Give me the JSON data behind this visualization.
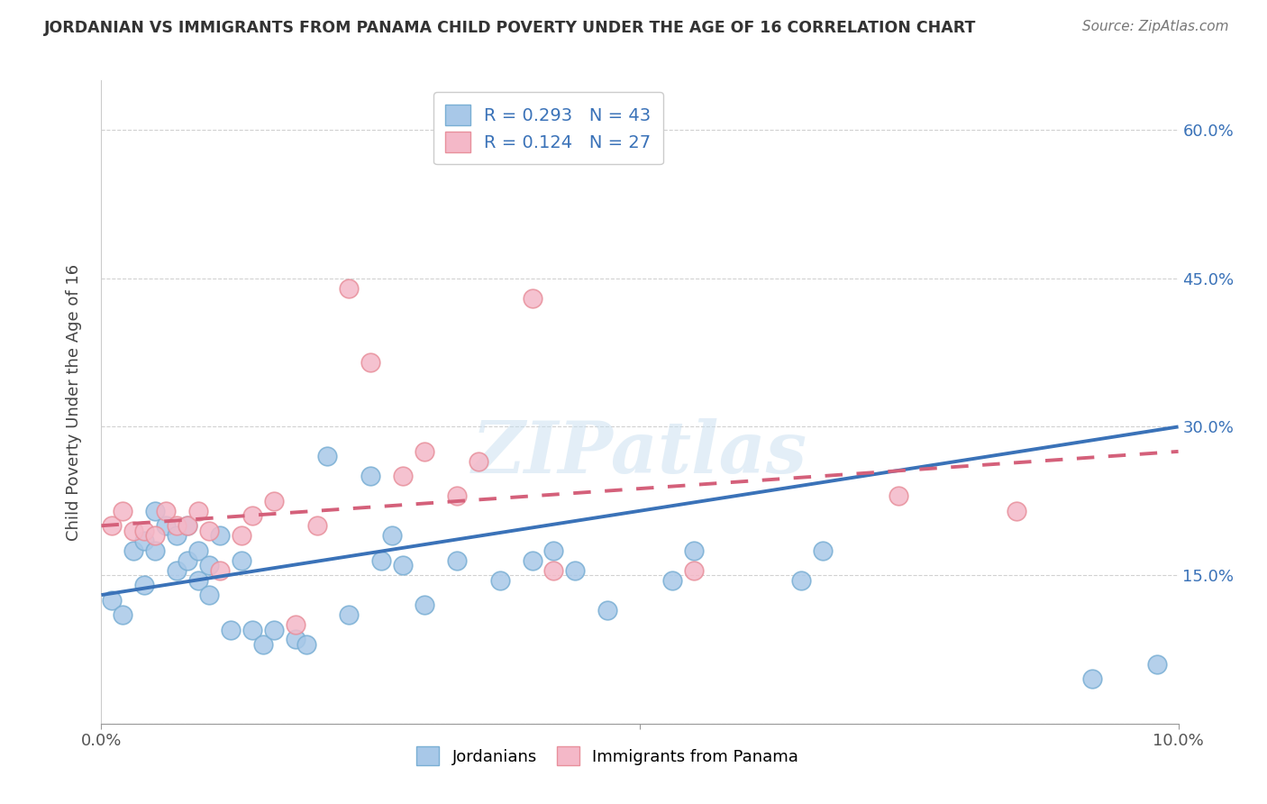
{
  "title": "JORDANIAN VS IMMIGRANTS FROM PANAMA CHILD POVERTY UNDER THE AGE OF 16 CORRELATION CHART",
  "source": "Source: ZipAtlas.com",
  "ylabel": "Child Poverty Under the Age of 16",
  "x_min": 0.0,
  "x_max": 0.1,
  "y_min": 0.0,
  "y_max": 0.65,
  "y_ticks": [
    0.0,
    0.15,
    0.3,
    0.45,
    0.6
  ],
  "y_tick_labels": [
    "",
    "15.0%",
    "30.0%",
    "45.0%",
    "60.0%"
  ],
  "blue_R": 0.293,
  "blue_N": 43,
  "pink_R": 0.124,
  "pink_N": 27,
  "blue_color": "#a8c8e8",
  "pink_color": "#f4b8c8",
  "blue_edge_color": "#7aafd4",
  "pink_edge_color": "#e8909c",
  "blue_line_color": "#3a72b8",
  "pink_line_color": "#d4607a",
  "legend_label_blue": "Jordanians",
  "legend_label_pink": "Immigrants from Panama",
  "blue_x": [
    0.001,
    0.002,
    0.003,
    0.004,
    0.004,
    0.005,
    0.005,
    0.006,
    0.007,
    0.007,
    0.008,
    0.008,
    0.009,
    0.009,
    0.01,
    0.01,
    0.011,
    0.012,
    0.013,
    0.014,
    0.015,
    0.016,
    0.018,
    0.019,
    0.021,
    0.023,
    0.025,
    0.026,
    0.027,
    0.028,
    0.03,
    0.033,
    0.037,
    0.04,
    0.042,
    0.044,
    0.047,
    0.053,
    0.055,
    0.065,
    0.067,
    0.092,
    0.098
  ],
  "blue_y": [
    0.125,
    0.11,
    0.175,
    0.14,
    0.185,
    0.175,
    0.215,
    0.2,
    0.19,
    0.155,
    0.165,
    0.2,
    0.145,
    0.175,
    0.13,
    0.16,
    0.19,
    0.095,
    0.165,
    0.095,
    0.08,
    0.095,
    0.085,
    0.08,
    0.27,
    0.11,
    0.25,
    0.165,
    0.19,
    0.16,
    0.12,
    0.165,
    0.145,
    0.165,
    0.175,
    0.155,
    0.115,
    0.145,
    0.175,
    0.145,
    0.175,
    0.045,
    0.06
  ],
  "pink_x": [
    0.001,
    0.002,
    0.003,
    0.004,
    0.005,
    0.006,
    0.007,
    0.008,
    0.009,
    0.01,
    0.011,
    0.013,
    0.014,
    0.016,
    0.018,
    0.02,
    0.023,
    0.025,
    0.028,
    0.03,
    0.033,
    0.035,
    0.04,
    0.042,
    0.055,
    0.074,
    0.085
  ],
  "pink_y": [
    0.2,
    0.215,
    0.195,
    0.195,
    0.19,
    0.215,
    0.2,
    0.2,
    0.215,
    0.195,
    0.155,
    0.19,
    0.21,
    0.225,
    0.1,
    0.2,
    0.44,
    0.365,
    0.25,
    0.275,
    0.23,
    0.265,
    0.43,
    0.155,
    0.155,
    0.23,
    0.215
  ],
  "blue_intercept": 0.13,
  "blue_slope": 1.7,
  "pink_intercept": 0.2,
  "pink_slope": 0.75,
  "watermark": "ZIPatlas",
  "figsize": [
    14.06,
    8.92
  ],
  "dpi": 100
}
